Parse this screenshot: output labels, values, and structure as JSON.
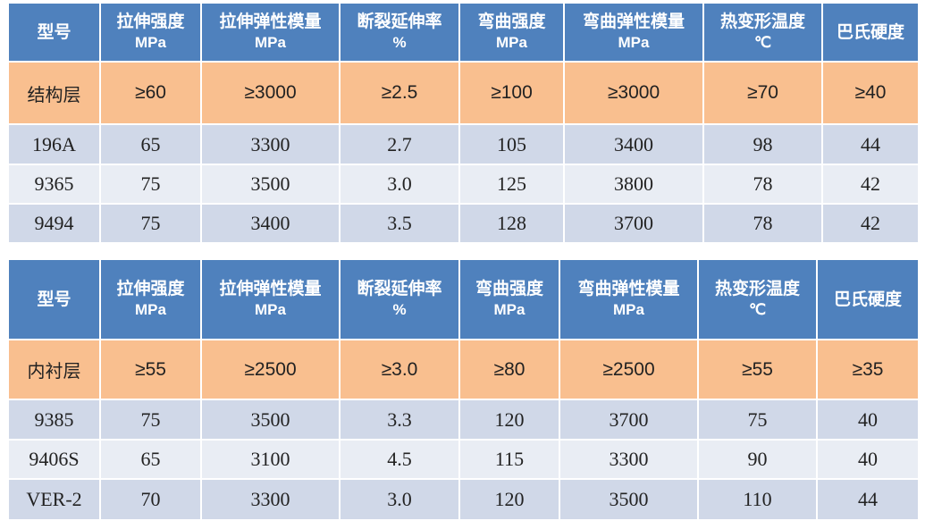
{
  "tables": [
    {
      "headers": [
        {
          "name": "型号",
          "unit": ""
        },
        {
          "name": "拉伸强度",
          "unit": "MPa"
        },
        {
          "name": "拉伸弹性模量",
          "unit": "MPa"
        },
        {
          "name": "断裂延伸率",
          "unit": "%"
        },
        {
          "name": "弯曲强度",
          "unit": "MPa"
        },
        {
          "name": "弯曲弹性模量",
          "unit": "MPa"
        },
        {
          "name": "热变形温度",
          "unit": "℃"
        },
        {
          "name": "巴氏硬度",
          "unit": ""
        }
      ],
      "requirement": [
        "结构层",
        "≥60",
        "≥3000",
        "≥2.5",
        "≥100",
        "≥3000",
        "≥70",
        "≥40"
      ],
      "rows": [
        [
          "196A",
          "65",
          "3300",
          "2.7",
          "105",
          "3400",
          "98",
          "44"
        ],
        [
          "9365",
          "75",
          "3500",
          "3.0",
          "125",
          "3800",
          "78",
          "42"
        ],
        [
          "9494",
          "75",
          "3400",
          "3.5",
          "128",
          "3700",
          "78",
          "42"
        ]
      ]
    },
    {
      "headers": [
        {
          "name": "型号",
          "unit": ""
        },
        {
          "name": "拉伸强度",
          "unit": "MPa"
        },
        {
          "name": "拉伸弹性模量",
          "unit": "MPa"
        },
        {
          "name": "断裂延伸率",
          "unit": "%"
        },
        {
          "name": "弯曲强度",
          "unit": "MPa"
        },
        {
          "name": "弯曲弹性模量",
          "unit": "MPa"
        },
        {
          "name": "热变形温度",
          "unit": "℃"
        },
        {
          "name": "巴氏硬度",
          "unit": ""
        }
      ],
      "requirement": [
        "内衬层",
        "≥55",
        "≥2500",
        "≥3.0",
        "≥80",
        "≥2500",
        "≥55",
        "≥35"
      ],
      "rows": [
        [
          "9385",
          "75",
          "3500",
          "3.3",
          "120",
          "3700",
          "75",
          "40"
        ],
        [
          "9406S",
          "65",
          "3100",
          "4.5",
          "115",
          "3300",
          "90",
          "40"
        ],
        [
          "VER-2",
          "70",
          "3300",
          "3.0",
          "120",
          "3500",
          "110",
          "44"
        ]
      ]
    }
  ]
}
